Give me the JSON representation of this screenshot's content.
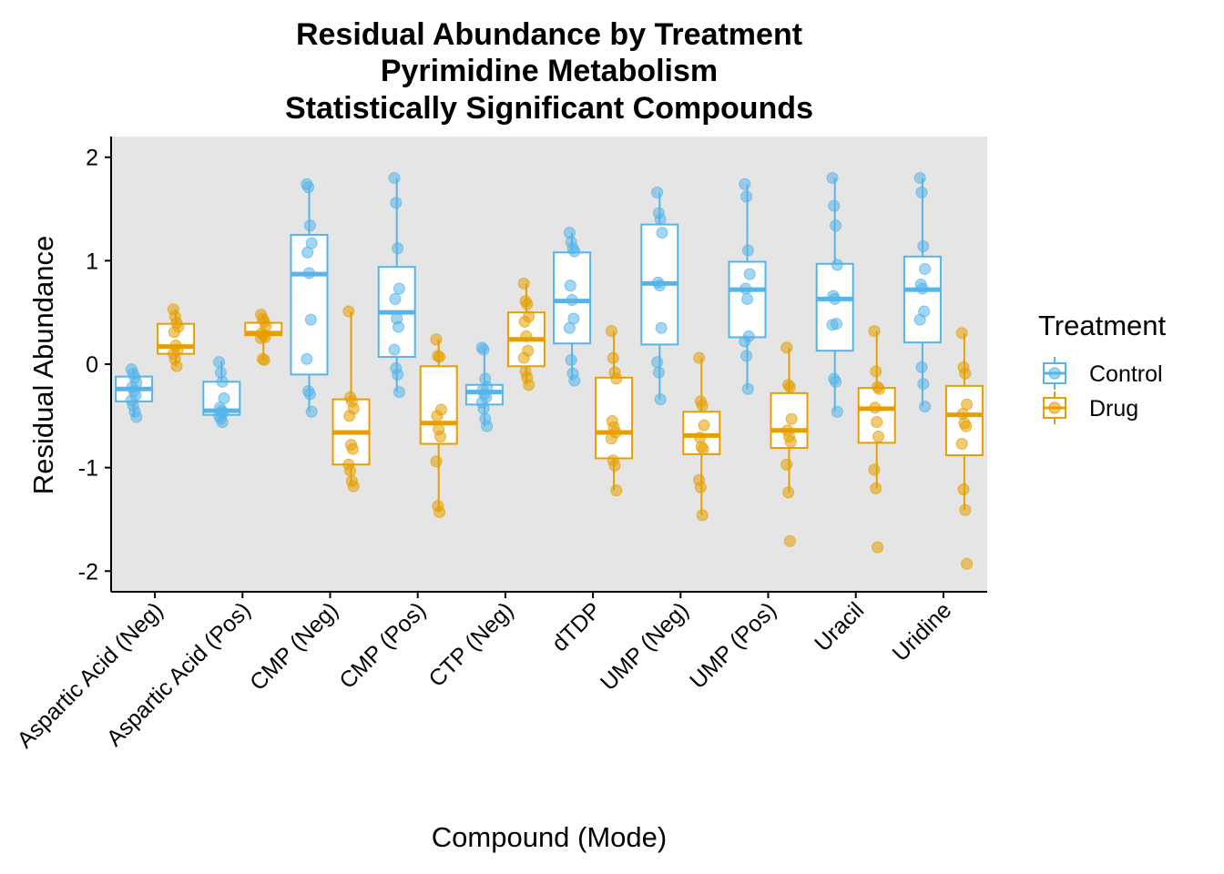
{
  "chart_data": {
    "type": "box",
    "title": [
      "Residual Abundance by Treatment",
      "Pyrimidine Metabolism",
      "Statistically Significant Compounds"
    ],
    "xlabel": "Compound (Mode)",
    "ylabel": "Residual Abundance",
    "ylim": [
      -2.2,
      2.2
    ],
    "yticks": [
      2,
      1,
      0,
      -1,
      -2
    ],
    "ytick_labels": [
      "2",
      "1",
      "0",
      "-1",
      "-2"
    ],
    "categories": [
      "Aspartic Acid (Neg)",
      "Aspartic Acid (Pos)",
      "CMP (Neg)",
      "CMP (Pos)",
      "CTP (Neg)",
      "dTDP",
      "UMP (Neg)",
      "UMP (Pos)",
      "Uracil",
      "Uridine"
    ],
    "grid": false,
    "legend": {
      "title": "Treatment",
      "placement": "right",
      "entries": [
        "Control",
        "Drug"
      ]
    },
    "colors": {
      "Control": "#56B4E9",
      "Drug": "#E69F00",
      "panel": "#E5E5E5"
    },
    "series": [
      {
        "name": "Control",
        "boxes": [
          {
            "whisker_low": -0.51,
            "q1": -0.36,
            "median": -0.24,
            "q3": -0.12,
            "whisker_high": -0.04,
            "points": [
              -0.05,
              -0.09,
              -0.13,
              -0.18,
              -0.22,
              -0.26,
              -0.3,
              -0.35,
              -0.4,
              -0.46,
              -0.51
            ]
          },
          {
            "whisker_low": -0.56,
            "q1": -0.49,
            "median": -0.45,
            "q3": -0.17,
            "whisker_high": 0.03,
            "points": [
              0.02,
              -0.08,
              -0.17,
              -0.33,
              -0.42,
              -0.45,
              -0.47,
              -0.5,
              -0.53,
              -0.56
            ]
          },
          {
            "whisker_low": -0.46,
            "q1": -0.1,
            "median": 0.87,
            "q3": 1.25,
            "whisker_high": 1.74,
            "points": [
              1.74,
              1.71,
              1.34,
              1.17,
              1.08,
              0.88,
              0.43,
              0.05,
              -0.26,
              -0.29,
              -0.46
            ]
          },
          {
            "whisker_low": -0.27,
            "q1": 0.07,
            "median": 0.5,
            "q3": 0.94,
            "whisker_high": 1.8,
            "points": [
              1.8,
              1.56,
              1.12,
              0.73,
              0.63,
              0.44,
              0.36,
              0.14,
              -0.04,
              -0.1,
              -0.27
            ]
          },
          {
            "whisker_low": -0.6,
            "q1": -0.39,
            "median": -0.27,
            "q3": -0.2,
            "whisker_high": 0.16,
            "points": [
              0.16,
              0.14,
              -0.14,
              -0.22,
              -0.25,
              -0.29,
              -0.32,
              -0.37,
              -0.43,
              -0.53,
              -0.6
            ]
          },
          {
            "whisker_low": -0.16,
            "q1": 0.2,
            "median": 0.61,
            "q3": 1.08,
            "whisker_high": 1.27,
            "points": [
              1.27,
              1.18,
              1.12,
              1.09,
              0.76,
              0.62,
              0.44,
              0.35,
              0.04,
              -0.09,
              -0.16
            ]
          },
          {
            "whisker_low": -0.34,
            "q1": 0.19,
            "median": 0.78,
            "q3": 1.35,
            "whisker_high": 1.66,
            "points": [
              1.66,
              1.46,
              1.4,
              1.27,
              0.79,
              0.76,
              0.35,
              0.02,
              -0.08,
              -0.34
            ]
          },
          {
            "whisker_low": -0.24,
            "q1": 0.26,
            "median": 0.72,
            "q3": 0.99,
            "whisker_high": 1.74,
            "points": [
              1.74,
              1.62,
              1.1,
              0.87,
              0.73,
              0.63,
              0.27,
              0.22,
              0.08,
              -0.24
            ]
          },
          {
            "whisker_low": -0.46,
            "q1": 0.13,
            "median": 0.63,
            "q3": 0.97,
            "whisker_high": 1.8,
            "points": [
              1.8,
              1.53,
              1.34,
              0.96,
              0.66,
              0.63,
              0.39,
              0.38,
              -0.14,
              -0.17,
              -0.46
            ]
          },
          {
            "whisker_low": -0.41,
            "q1": 0.21,
            "median": 0.72,
            "q3": 1.04,
            "whisker_high": 1.8,
            "points": [
              1.8,
              1.66,
              1.14,
              0.92,
              0.77,
              0.73,
              0.51,
              0.43,
              -0.03,
              -0.19,
              -0.41
            ]
          }
        ]
      },
      {
        "name": "Drug",
        "boxes": [
          {
            "whisker_low": -0.02,
            "q1": 0.1,
            "median": 0.17,
            "q3": 0.39,
            "whisker_high": 0.53,
            "points": [
              0.53,
              0.46,
              0.4,
              0.36,
              0.31,
              0.18,
              0.14,
              0.1,
              0.05,
              -0.02
            ]
          },
          {
            "whisker_low": 0.04,
            "q1": 0.28,
            "median": 0.3,
            "q3": 0.4,
            "whisker_high": 0.48,
            "points": [
              0.48,
              0.44,
              0.41,
              0.37,
              0.3,
              0.28,
              0.26,
              0.25,
              0.05,
              0.04
            ]
          },
          {
            "whisker_low": -1.18,
            "q1": -0.97,
            "median": -0.66,
            "q3": -0.34,
            "whisker_high": 0.51,
            "points": [
              0.51,
              -0.32,
              -0.36,
              -0.43,
              -0.5,
              -0.78,
              -0.82,
              -0.97,
              -1.03,
              -1.13,
              -1.18
            ]
          },
          {
            "whisker_low": -1.43,
            "q1": -0.77,
            "median": -0.57,
            "q3": -0.02,
            "whisker_high": 0.24,
            "points": [
              0.24,
              0.08,
              0.07,
              -0.44,
              -0.5,
              -0.63,
              -0.7,
              -0.94,
              -1.37,
              -1.43
            ]
          },
          {
            "whisker_low": -0.2,
            "q1": -0.02,
            "median": 0.24,
            "q3": 0.5,
            "whisker_high": 0.78,
            "points": [
              0.78,
              0.61,
              0.58,
              0.46,
              0.41,
              0.27,
              0.13,
              0.06,
              -0.07,
              -0.13,
              -0.2
            ]
          },
          {
            "whisker_low": -1.22,
            "q1": -0.91,
            "median": -0.66,
            "q3": -0.13,
            "whisker_high": 0.32,
            "points": [
              0.32,
              0.06,
              -0.08,
              -0.14,
              -0.55,
              -0.61,
              -0.66,
              -0.72,
              -0.93,
              -0.98,
              -1.22
            ]
          },
          {
            "whisker_low": -1.46,
            "q1": -0.87,
            "median": -0.69,
            "q3": -0.46,
            "whisker_high": 0.06,
            "points": [
              0.06,
              -0.36,
              -0.4,
              -0.59,
              -0.71,
              -0.8,
              -0.82,
              -1.12,
              -1.19,
              -1.46
            ]
          },
          {
            "whisker_low": -1.24,
            "q1": -0.81,
            "median": -0.64,
            "q3": -0.28,
            "whisker_high": 0.16,
            "points": [
              0.16,
              -0.2,
              -0.22,
              -0.53,
              -0.64,
              -0.7,
              -0.75,
              -0.97,
              -1.24,
              -1.71
            ]
          },
          {
            "whisker_low": -1.2,
            "q1": -0.76,
            "median": -0.43,
            "q3": -0.23,
            "whisker_high": 0.32,
            "points": [
              0.32,
              -0.07,
              -0.22,
              -0.24,
              -0.42,
              -0.56,
              -0.7,
              -1.02,
              -1.2,
              -1.77
            ]
          },
          {
            "whisker_low": -1.41,
            "q1": -0.88,
            "median": -0.49,
            "q3": -0.21,
            "whisker_high": 0.3,
            "points": [
              0.3,
              -0.03,
              -0.09,
              -0.39,
              -0.48,
              -0.57,
              -0.6,
              -0.77,
              -1.21,
              -1.41,
              -1.93
            ]
          }
        ]
      }
    ]
  }
}
